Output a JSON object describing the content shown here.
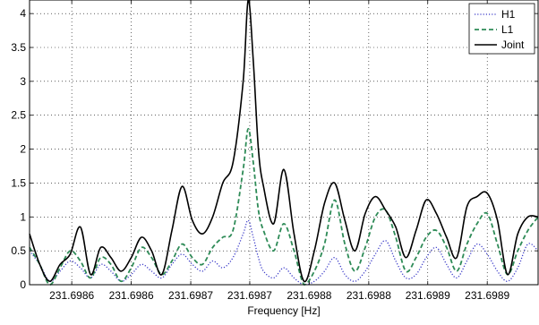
{
  "chart_data": {
    "type": "line",
    "title": "",
    "xlabel": "Frequency [Hz]",
    "ylabel": "",
    "xlim": [
      0,
      1
    ],
    "ylim": [
      0,
      4.2
    ],
    "grid": true,
    "legend_position": "top-right",
    "x_ticks": [
      {
        "pos": 0.083,
        "label": "231.6986"
      },
      {
        "pos": 0.2,
        "label": "231.6986"
      },
      {
        "pos": 0.317,
        "label": "231.6987"
      },
      {
        "pos": 0.433,
        "label": "231.6987"
      },
      {
        "pos": 0.55,
        "label": "231.6988"
      },
      {
        "pos": 0.667,
        "label": "231.6988"
      },
      {
        "pos": 0.783,
        "label": "231.6989"
      },
      {
        "pos": 0.9,
        "label": "231.6989"
      }
    ],
    "y_ticks": [
      0,
      0.5,
      1,
      1.5,
      2,
      2.5,
      3,
      3.5,
      4
    ],
    "y_tick_labels": [
      "0",
      "0.5",
      "1",
      "1.5",
      "2",
      "2.5",
      "3",
      "3.5",
      "4"
    ],
    "series": [
      {
        "name": "H1",
        "style": "dotted",
        "color": "#3a3ac8",
        "x": [
          0.0,
          0.02,
          0.04,
          0.06,
          0.08,
          0.1,
          0.12,
          0.14,
          0.16,
          0.18,
          0.2,
          0.22,
          0.24,
          0.26,
          0.28,
          0.3,
          0.32,
          0.34,
          0.36,
          0.38,
          0.4,
          0.42,
          0.43,
          0.44,
          0.45,
          0.46,
          0.48,
          0.5,
          0.52,
          0.54,
          0.56,
          0.58,
          0.6,
          0.62,
          0.64,
          0.66,
          0.68,
          0.7,
          0.72,
          0.74,
          0.76,
          0.78,
          0.8,
          0.82,
          0.84,
          0.86,
          0.88,
          0.9,
          0.92,
          0.94,
          0.96,
          0.98,
          1.0
        ],
        "y": [
          0.5,
          0.3,
          0.05,
          0.2,
          0.35,
          0.25,
          0.1,
          0.3,
          0.2,
          0.05,
          0.15,
          0.3,
          0.2,
          0.1,
          0.3,
          0.45,
          0.3,
          0.2,
          0.35,
          0.25,
          0.4,
          0.75,
          0.95,
          0.7,
          0.4,
          0.2,
          0.1,
          0.25,
          0.1,
          0.0,
          0.05,
          0.2,
          0.4,
          0.15,
          0.05,
          0.2,
          0.45,
          0.65,
          0.35,
          0.1,
          0.15,
          0.4,
          0.55,
          0.3,
          0.1,
          0.35,
          0.6,
          0.45,
          0.2,
          0.05,
          0.25,
          0.6,
          0.5
        ]
      },
      {
        "name": "L1",
        "style": "dashed",
        "color": "#2e8b57",
        "x": [
          0.0,
          0.02,
          0.04,
          0.06,
          0.08,
          0.1,
          0.12,
          0.14,
          0.16,
          0.18,
          0.2,
          0.22,
          0.24,
          0.26,
          0.28,
          0.3,
          0.32,
          0.34,
          0.36,
          0.38,
          0.4,
          0.42,
          0.43,
          0.44,
          0.45,
          0.46,
          0.48,
          0.5,
          0.52,
          0.54,
          0.56,
          0.58,
          0.6,
          0.62,
          0.64,
          0.66,
          0.68,
          0.7,
          0.72,
          0.74,
          0.76,
          0.78,
          0.8,
          0.82,
          0.84,
          0.86,
          0.88,
          0.9,
          0.92,
          0.94,
          0.96,
          0.98,
          1.0
        ],
        "y": [
          0.55,
          0.3,
          0.0,
          0.25,
          0.5,
          0.35,
          0.1,
          0.4,
          0.3,
          0.05,
          0.25,
          0.55,
          0.4,
          0.15,
          0.35,
          0.6,
          0.4,
          0.3,
          0.55,
          0.7,
          0.8,
          1.7,
          2.3,
          1.8,
          1.1,
          0.8,
          0.5,
          0.9,
          0.5,
          0.0,
          0.2,
          0.6,
          1.25,
          0.6,
          0.2,
          0.55,
          1.0,
          1.1,
          0.7,
          0.2,
          0.4,
          0.7,
          0.8,
          0.55,
          0.2,
          0.6,
          0.9,
          1.05,
          0.6,
          0.15,
          0.5,
          0.8,
          1.0
        ]
      },
      {
        "name": "Joint",
        "style": "solid",
        "color": "#000000",
        "x": [
          0.0,
          0.02,
          0.04,
          0.06,
          0.08,
          0.1,
          0.12,
          0.14,
          0.16,
          0.18,
          0.2,
          0.22,
          0.24,
          0.26,
          0.28,
          0.3,
          0.32,
          0.34,
          0.36,
          0.38,
          0.4,
          0.42,
          0.43,
          0.44,
          0.45,
          0.46,
          0.48,
          0.5,
          0.52,
          0.54,
          0.56,
          0.58,
          0.6,
          0.62,
          0.64,
          0.66,
          0.68,
          0.7,
          0.72,
          0.74,
          0.76,
          0.78,
          0.8,
          0.82,
          0.84,
          0.86,
          0.88,
          0.9,
          0.92,
          0.94,
          0.96,
          0.98,
          1.0
        ],
        "y": [
          0.75,
          0.3,
          0.05,
          0.3,
          0.45,
          0.85,
          0.15,
          0.55,
          0.4,
          0.2,
          0.4,
          0.7,
          0.5,
          0.15,
          0.8,
          1.45,
          0.95,
          0.75,
          1.0,
          1.5,
          1.8,
          3.0,
          4.2,
          3.3,
          2.0,
          1.45,
          0.9,
          1.7,
          0.75,
          0.05,
          0.5,
          1.2,
          1.5,
          0.95,
          0.5,
          1.05,
          1.3,
          1.1,
          0.85,
          0.4,
          0.8,
          1.25,
          1.05,
          0.7,
          0.4,
          1.15,
          1.3,
          1.35,
          0.95,
          0.15,
          0.75,
          1.0,
          1.0
        ]
      }
    ]
  }
}
